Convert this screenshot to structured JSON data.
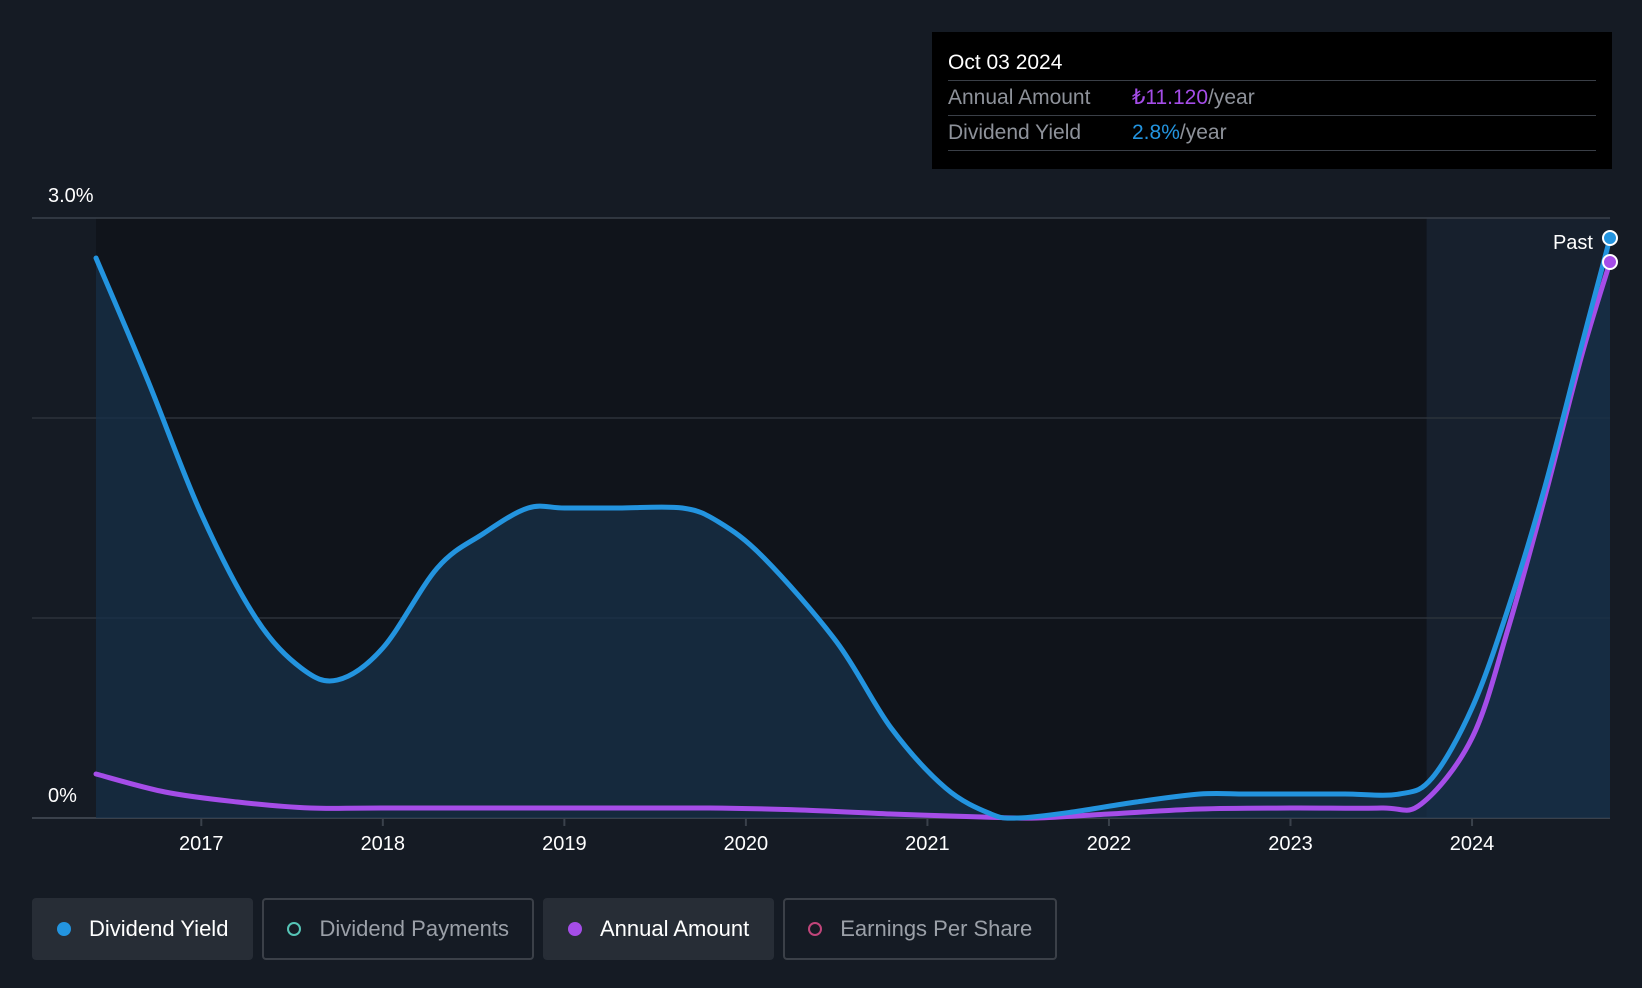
{
  "tooltip": {
    "date": "Oct 03 2024",
    "annual_amount_label": "Annual Amount",
    "annual_amount_value": "₺11.120",
    "annual_amount_suffix": "/year",
    "dividend_yield_label": "Dividend Yield",
    "dividend_yield_value": "2.8%",
    "dividend_yield_suffix": "/year"
  },
  "legend": [
    {
      "label": "Dividend Yield",
      "color": "#2394df",
      "active": true
    },
    {
      "label": "Dividend Payments",
      "color": "#56c4b6",
      "active": false
    },
    {
      "label": "Annual Amount",
      "color": "#a54de8",
      "active": true
    },
    {
      "label": "Earnings Per Share",
      "color": "#c0457a",
      "active": false
    }
  ],
  "colors": {
    "background": "#151b24",
    "plot_background": "#10141b",
    "dividend_yield": "#2394df",
    "annual_amount": "#a54de8",
    "gridline": "#2c323b"
  },
  "chart_data": {
    "type": "line",
    "y_tick_labels": [
      "3.0%",
      "0%"
    ],
    "ylim": [
      0,
      3.0
    ],
    "xlim": [
      2016.42,
      2024.76
    ],
    "x_tick_labels": [
      "2017",
      "2018",
      "2019",
      "2020",
      "2021",
      "2022",
      "2023",
      "2024"
    ],
    "x_ticks": [
      2017,
      2018,
      2019,
      2020,
      2021,
      2022,
      2023,
      2024
    ],
    "past_label": "Past",
    "past_region_start": 2023.75,
    "grid": true,
    "series": [
      {
        "name": "Dividend Yield",
        "unit": "%",
        "points": [
          [
            2016.42,
            2.8
          ],
          [
            2016.7,
            2.2
          ],
          [
            2017.0,
            1.52
          ],
          [
            2017.3,
            1.0
          ],
          [
            2017.55,
            0.75
          ],
          [
            2017.75,
            0.69
          ],
          [
            2018.0,
            0.85
          ],
          [
            2018.3,
            1.25
          ],
          [
            2018.55,
            1.42
          ],
          [
            2018.8,
            1.55
          ],
          [
            2019.0,
            1.55
          ],
          [
            2019.3,
            1.55
          ],
          [
            2019.65,
            1.55
          ],
          [
            2019.85,
            1.48
          ],
          [
            2020.1,
            1.3
          ],
          [
            2020.5,
            0.88
          ],
          [
            2020.8,
            0.45
          ],
          [
            2021.1,
            0.15
          ],
          [
            2021.35,
            0.02
          ],
          [
            2021.5,
            0.0
          ],
          [
            2021.8,
            0.03
          ],
          [
            2022.15,
            0.08
          ],
          [
            2022.5,
            0.12
          ],
          [
            2022.75,
            0.12
          ],
          [
            2023.0,
            0.12
          ],
          [
            2023.3,
            0.12
          ],
          [
            2023.6,
            0.12
          ],
          [
            2023.78,
            0.2
          ],
          [
            2024.0,
            0.55
          ],
          [
            2024.2,
            1.05
          ],
          [
            2024.4,
            1.65
          ],
          [
            2024.6,
            2.35
          ],
          [
            2024.76,
            2.9
          ]
        ]
      },
      {
        "name": "Annual Amount",
        "unit": "%",
        "points": [
          [
            2016.42,
            0.22
          ],
          [
            2016.8,
            0.13
          ],
          [
            2017.2,
            0.08
          ],
          [
            2017.6,
            0.05
          ],
          [
            2018.0,
            0.05
          ],
          [
            2019.0,
            0.05
          ],
          [
            2019.8,
            0.05
          ],
          [
            2020.3,
            0.04
          ],
          [
            2020.8,
            0.02
          ],
          [
            2021.3,
            0.005
          ],
          [
            2021.6,
            0.0
          ],
          [
            2022.0,
            0.02
          ],
          [
            2022.5,
            0.045
          ],
          [
            2023.0,
            0.05
          ],
          [
            2023.5,
            0.05
          ],
          [
            2023.72,
            0.07
          ],
          [
            2024.0,
            0.4
          ],
          [
            2024.2,
            0.95
          ],
          [
            2024.4,
            1.6
          ],
          [
            2024.6,
            2.3
          ],
          [
            2024.76,
            2.78
          ]
        ]
      }
    ]
  }
}
